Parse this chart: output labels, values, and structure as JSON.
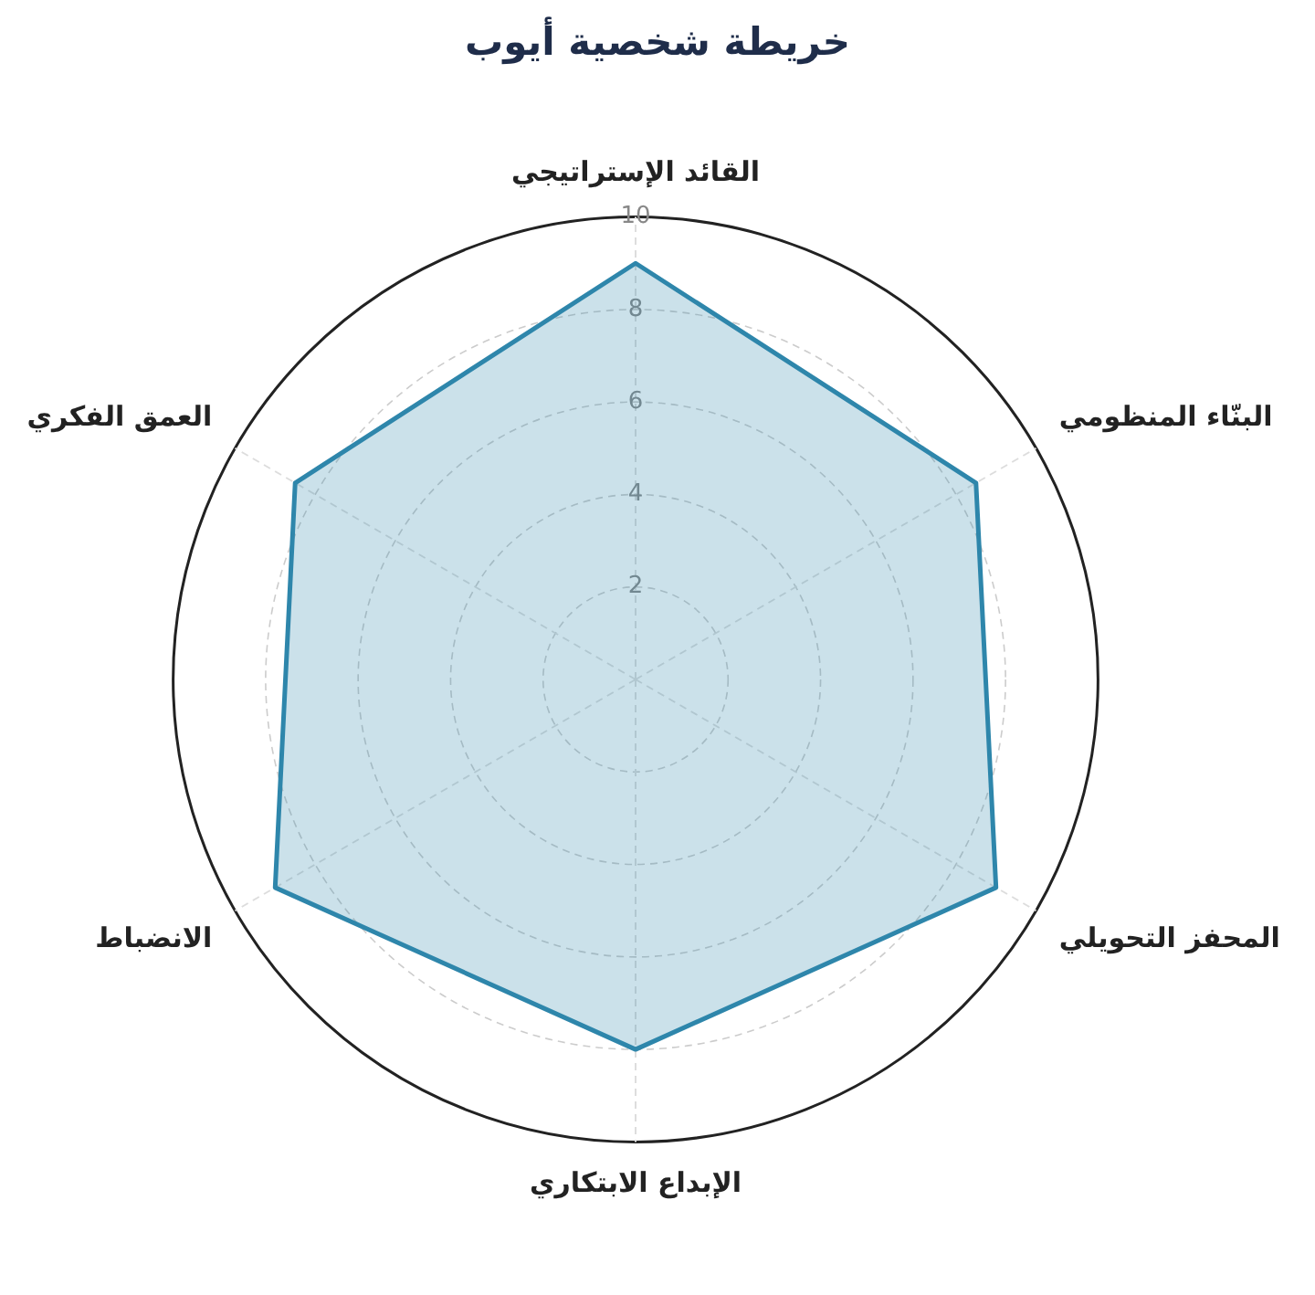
{
  "chart_data": {
    "type": "radar",
    "title": "خريطة شخصية أيوب",
    "categories": [
      "القائد الإستراتيجي",
      "البنّاء المنظومي",
      "المحفز التحويلي",
      "الإبداع الابتكاري",
      "الانضباط",
      "العمق الفكري"
    ],
    "series": [
      {
        "color": "#2e86ab",
        "values": [
          9,
          8.5,
          9,
          8,
          9,
          8.5
        ]
      }
    ],
    "ylim": [
      0,
      10
    ],
    "yticks": [
      2,
      4,
      6,
      8,
      10
    ],
    "grid": true,
    "legend": false,
    "marker": "none"
  }
}
